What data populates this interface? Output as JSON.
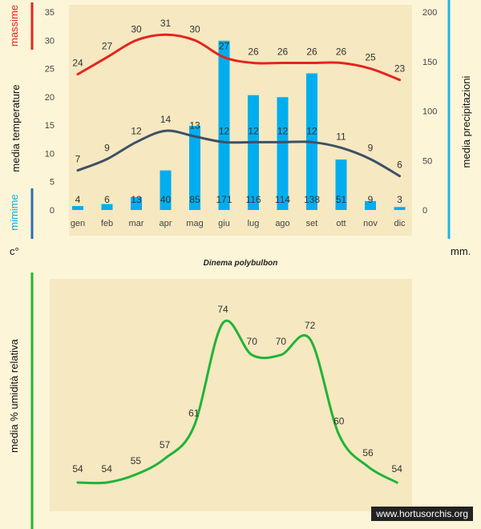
{
  "chart_data": [
    {
      "type": "bar+line",
      "categories": [
        "gen",
        "feb",
        "mar",
        "apr",
        "mag",
        "giu",
        "lug",
        "ago",
        "set",
        "ott",
        "nov",
        "dic"
      ],
      "max_label": "massime",
      "min_label": "mimime",
      "left_ylabel": "media temperature",
      "right_ylabel": "media precipitazioni",
      "left_unit": "c°",
      "right_unit": "mm.",
      "left_ylim": [
        0,
        35
      ],
      "left_ticks": [
        0,
        5,
        10,
        15,
        20,
        25,
        30,
        35
      ],
      "right_ylim": [
        0,
        200
      ],
      "right_ticks": [
        0,
        50,
        100,
        150,
        200
      ],
      "series": [
        {
          "kind": "line",
          "axis": "left",
          "color": "#e5241d",
          "values": [
            24,
            27,
            30,
            31,
            30,
            27,
            26,
            26,
            26,
            26,
            25,
            23
          ]
        },
        {
          "kind": "line",
          "axis": "left",
          "color": "#3e5068",
          "values": [
            7,
            9,
            12,
            14,
            13,
            12,
            12,
            12,
            12,
            11,
            9,
            6
          ]
        },
        {
          "kind": "bar",
          "axis": "right",
          "color": "#00aeef",
          "values": [
            4,
            6,
            13,
            40,
            85,
            171,
            116,
            114,
            138,
            51,
            9,
            3
          ]
        }
      ],
      "grid": false
    },
    {
      "type": "line",
      "ylabel": "media % umidità relativa",
      "series": [
        {
          "color": "#1fb33a",
          "values": [
            54,
            54,
            55,
            57,
            61,
            74,
            70,
            70,
            72,
            60,
            56,
            54
          ]
        }
      ]
    }
  ],
  "species": "Dinema polybulbon",
  "watermark": "www.hortusorchis.org",
  "colors": {
    "max_bar": "#e5241d",
    "min_bar": "#2b6db3",
    "right_bar": "#1fb3e8",
    "humidity_bar": "#1fb33a",
    "bg": "#fdf5d8"
  }
}
